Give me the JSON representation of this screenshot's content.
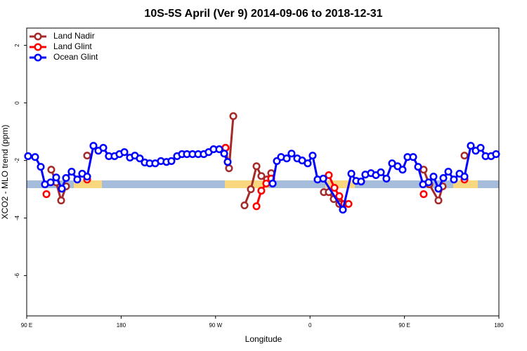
{
  "chart_data": {
    "type": "line",
    "title": "10S-5S April (Ver 9)   2014-09-06 to 2018-12-31",
    "x_label": "Longitude",
    "y_label": "XCO2 - MLO trend (ppm)",
    "xlim": [
      90,
      540
    ],
    "xticks": [
      {
        "value": 90,
        "label": "90 E"
      },
      180,
      {
        "value": 270,
        "label": "90 W"
      },
      {
        "value": 360,
        "label": "0"
      },
      {
        "value": 450,
        "label": "90 E"
      },
      {
        "value": 540,
        "label": "180"
      }
    ],
    "ylim": [
      -7.4,
      2.6
    ],
    "yticks": [
      -6,
      -4,
      -2,
      0,
      2
    ],
    "legend": "upper left",
    "series": [
      {
        "name": "Land Nadir",
        "color": "#a52a2a",
        "x": [
          113.4,
          118.1,
          122.8,
          127.5,
          null,
          147.6,
          null,
          279.5,
          282.8,
          286.9,
          null,
          297.6,
          303.6,
          309,
          313.6,
          319,
          323,
          null,
          373.2,
          377.9,
          382.6,
          387.9,
          null,
          468.3,
          473.7,
          482.4,
          486.4,
          null,
          507.2
        ],
        "values": [
          -2.32,
          -2.76,
          -3.39,
          -2.9,
          null,
          -1.83,
          null,
          -1.56,
          -2.27,
          -0.46,
          null,
          -3.56,
          -3.0,
          -2.2,
          -2.54,
          -2.66,
          -2.44,
          null,
          -3.1,
          -3.1,
          -3.34,
          -3.51,
          null,
          -2.32,
          -2.83,
          -3.39,
          -2.9,
          null,
          -1.83
        ]
      },
      {
        "name": "Land Glint",
        "color": "#ff0000",
        "x": [
          108.8,
          null,
          147.6,
          null,
          279.5,
          null,
          309,
          313.6,
          318.3,
          323,
          null,
          377.9,
          383.3,
          387.9,
          392.6,
          396.7,
          null,
          468.3,
          null,
          507.2
        ],
        "values": [
          -3.17,
          null,
          -2.66,
          null,
          -1.56,
          null,
          -3.59,
          -3.05,
          -2.8,
          -2.63,
          null,
          -2.51,
          -2.95,
          -3.24,
          -3.51,
          -3.51,
          null,
          -3.17,
          null,
          -2.66
        ]
      },
      {
        "name": "Ocean Glint",
        "color": "#0000ff",
        "x": [
          91.3,
          98,
          103.4,
          107.4,
          112.8,
          118.1,
          123.5,
          127.5,
          132.8,
          138.2,
          142.9,
          147.6,
          153.6,
          158.3,
          163,
          168.3,
          173.7,
          178.4,
          183.1,
          188.4,
          193.1,
          197.8,
          202.5,
          207.2,
          212.5,
          217.9,
          223.2,
          227.9,
          233.3,
          238,
          242.7,
          248,
          253.4,
          258.7,
          263.4,
          268.1,
          273.5,
          278.2,
          281.5,
          null,
          324.4,
          328.4,
          332.4,
          337.8,
          342.4,
          347.8,
          352.5,
          357.8,
          362.5,
          367.2,
          372.6,
          391.3,
          399.4,
          404,
          408.7,
          412.7,
          418.1,
          422.8,
          427.5,
          432.8,
          438.2,
          443.5,
          448.2,
          452.9,
          458.3,
          463,
          467.7,
          473,
          477.7,
          482.4,
          487.1,
          491.8,
          497.1,
          502.5,
          507.2,
          513.2,
          517.9,
          522.6,
          527.3,
          532.6,
          537.3
        ],
        "values": [
          -1.85,
          -1.88,
          -2.22,
          -2.83,
          -2.76,
          -2.59,
          -2.98,
          -2.61,
          -2.39,
          -2.66,
          -2.46,
          -2.56,
          -1.49,
          -1.66,
          -1.56,
          -1.85,
          -1.85,
          -1.78,
          -1.71,
          -1.9,
          -1.83,
          -1.93,
          -2.07,
          -2.1,
          -2.1,
          -2.02,
          -2.05,
          -2.02,
          -1.85,
          -1.78,
          -1.78,
          -1.78,
          -1.78,
          -1.78,
          -1.71,
          -1.61,
          -1.61,
          -1.76,
          -2.05,
          null,
          -2.8,
          -2.02,
          -1.88,
          -1.93,
          -1.76,
          -1.93,
          -2.0,
          -2.1,
          -1.83,
          -2.66,
          -2.63,
          -3.71,
          -2.46,
          -2.71,
          -2.73,
          -2.49,
          -2.44,
          -2.51,
          -2.41,
          -2.63,
          -2.1,
          -2.2,
          -2.32,
          -1.88,
          -1.88,
          -2.22,
          -2.83,
          -2.76,
          -2.56,
          -2.98,
          -2.61,
          -2.39,
          -2.66,
          -2.46,
          -2.56,
          -1.49,
          -1.66,
          -1.56,
          -1.85,
          -1.85,
          -1.78
        ]
      }
    ]
  }
}
